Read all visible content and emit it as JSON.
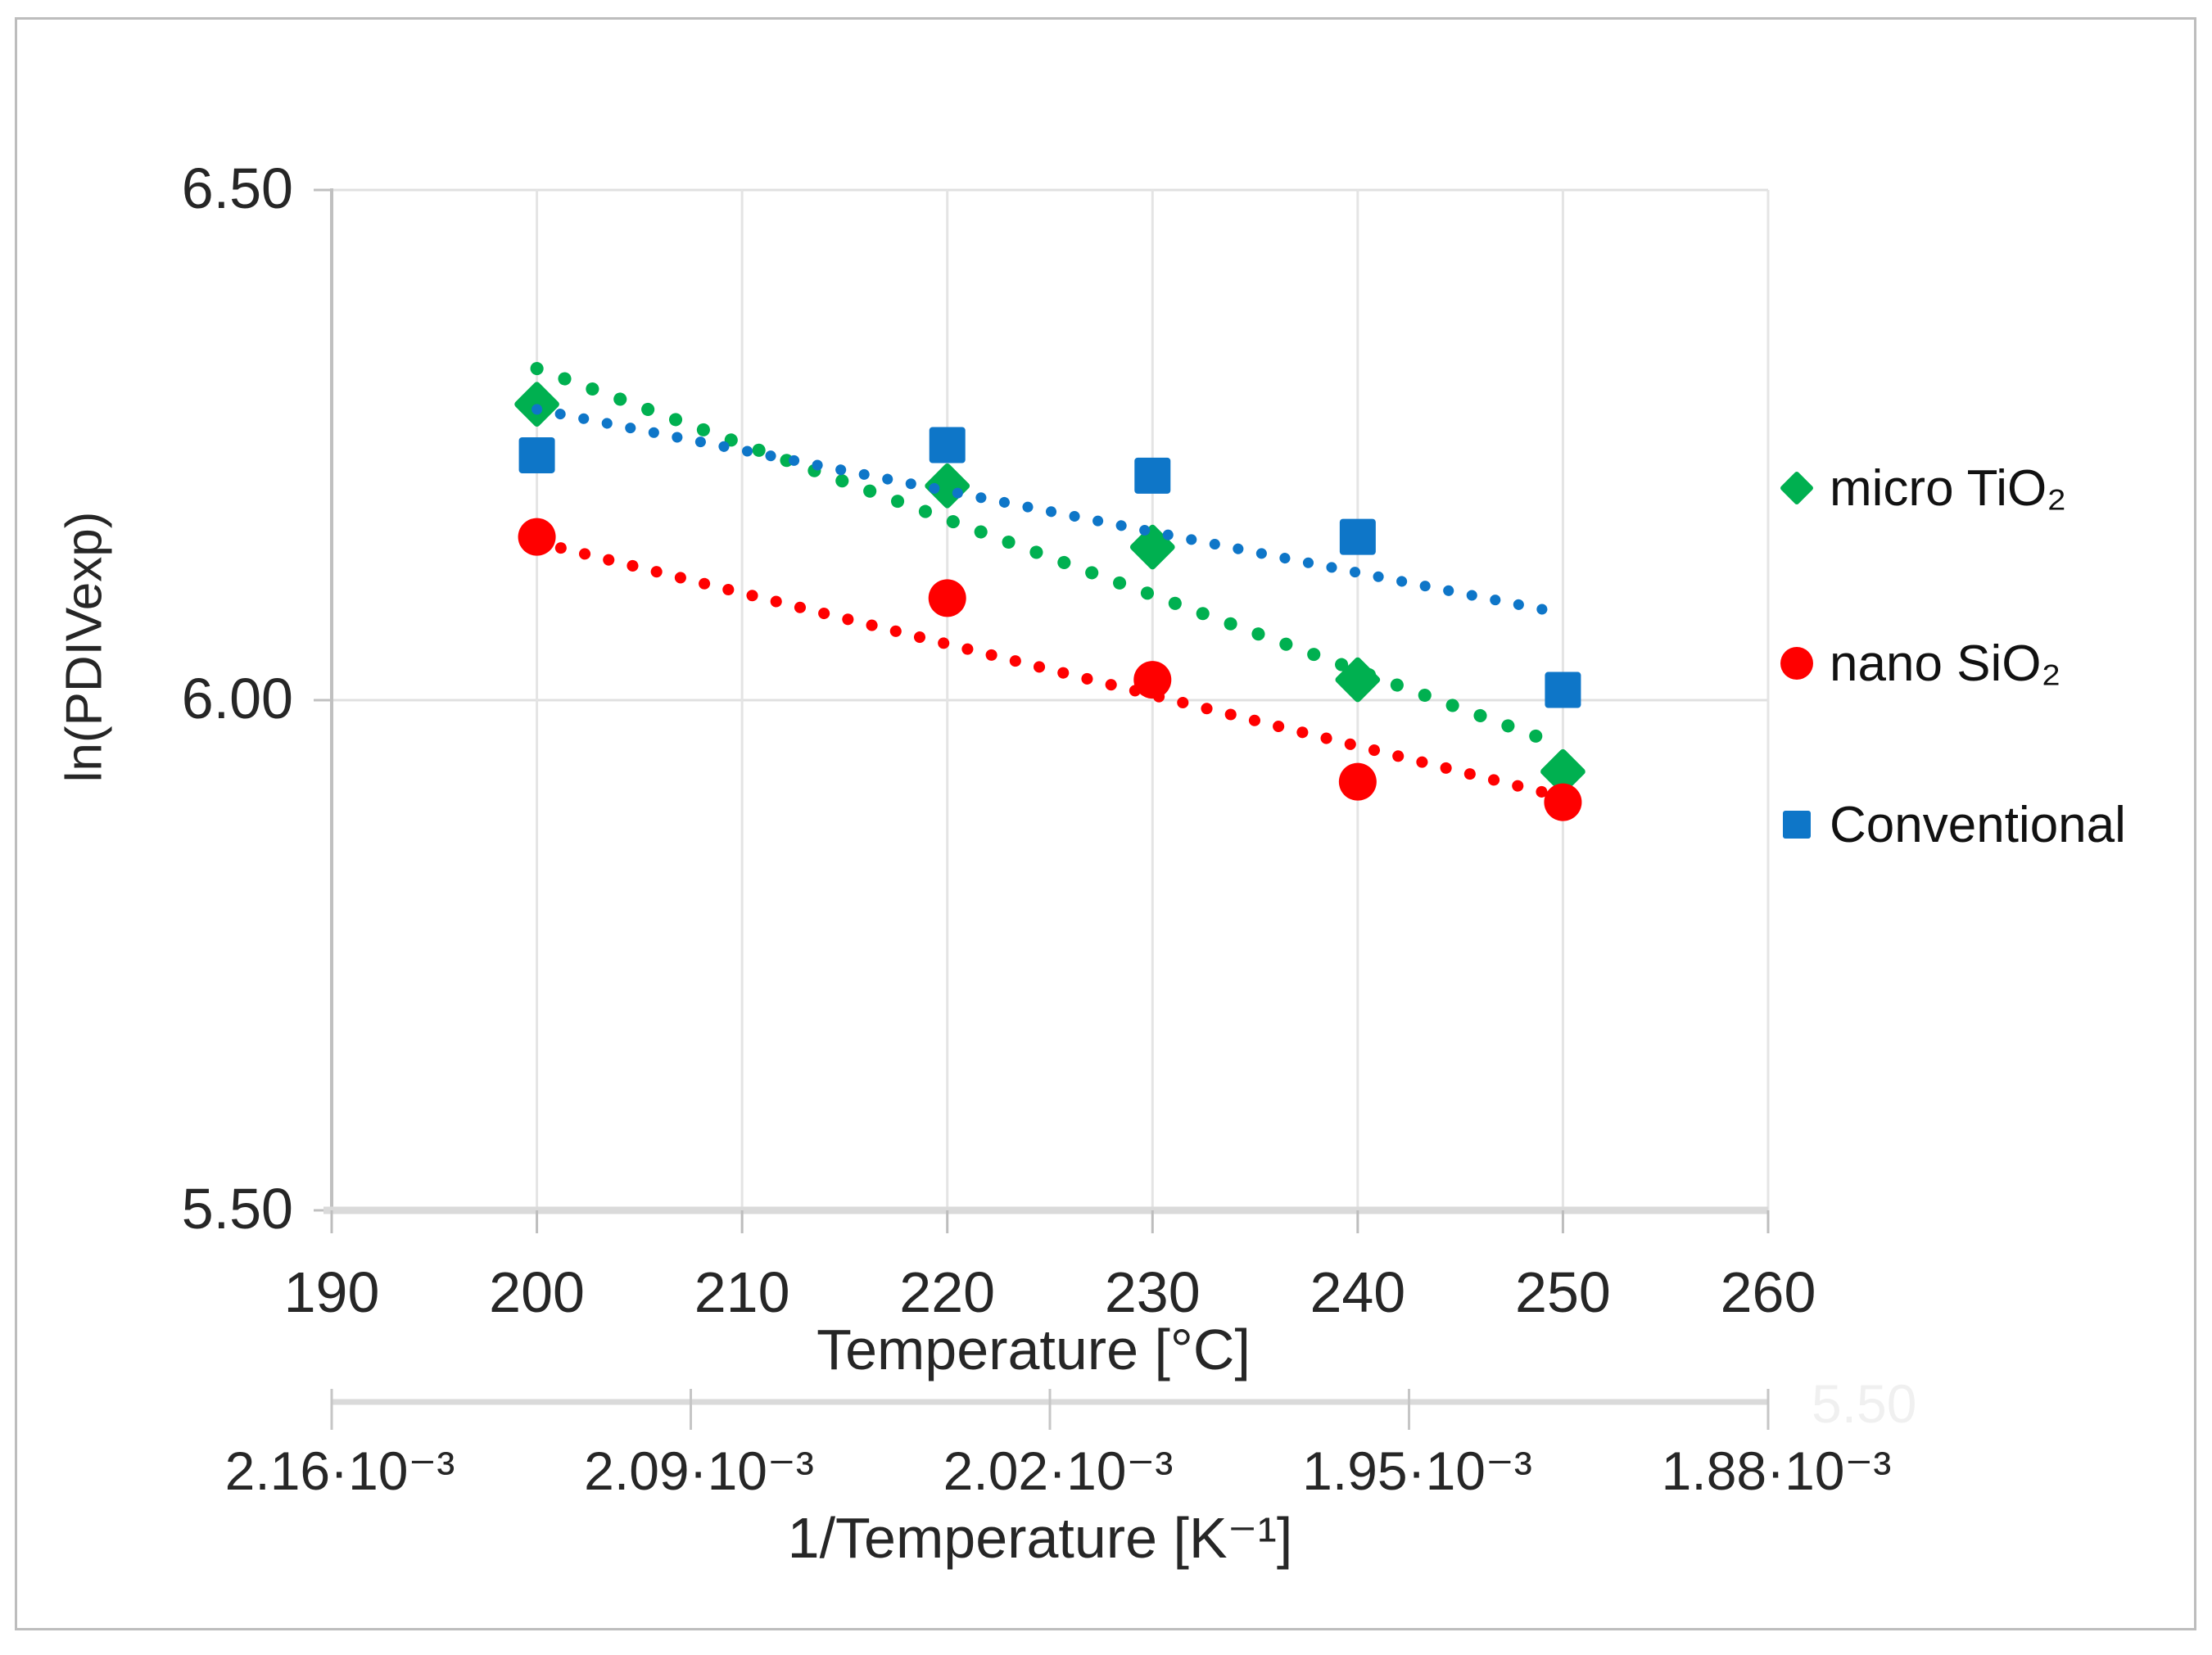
{
  "figure": {
    "background": "#FFFFFF",
    "border_color": "#BDBDBD"
  },
  "chart_data": {
    "type": "scatter",
    "title": "",
    "grid": true,
    "legend_position": "right",
    "y_axis": {
      "label": "ln(PDIVexp)",
      "min": 5.5,
      "max": 6.5,
      "ticks": [
        {
          "value": 6.5,
          "label": "6.50"
        },
        {
          "value": 6.0,
          "label": "6.00"
        },
        {
          "value": 5.5,
          "label": "5.50"
        }
      ]
    },
    "x_axis": {
      "label": "Temperature [°C]",
      "min": 190,
      "max": 260,
      "ticks": [
        {
          "value": 190,
          "label": "190"
        },
        {
          "value": 200,
          "label": "200"
        },
        {
          "value": 210,
          "label": "210"
        },
        {
          "value": 220,
          "label": "220"
        },
        {
          "value": 230,
          "label": "230"
        },
        {
          "value": 240,
          "label": "240"
        },
        {
          "value": 250,
          "label": "250"
        },
        {
          "value": 260,
          "label": "260"
        }
      ]
    },
    "x2_axis": {
      "label": "1/Temperature [K⁻¹]",
      "ticks": [
        "2.16·10⁻³",
        "2.09·10⁻³",
        "2.02·10⁻³",
        "1.95·10⁻³",
        "1.88·10⁻³"
      ]
    },
    "series": [
      {
        "name": "micro TiO₂",
        "marker": "diamond",
        "color": "#00B050",
        "points": [
          [
            200,
            6.29
          ],
          [
            220,
            6.21
          ],
          [
            230,
            6.15
          ],
          [
            240,
            6.02
          ],
          [
            250,
            5.93
          ]
        ],
        "trendline": {
          "style": "dotted",
          "x1": 200,
          "y1": 6.325,
          "x2": 250,
          "y2": 5.955
        }
      },
      {
        "name": "nano SiO₂",
        "marker": "circle",
        "color": "#FF0000",
        "points": [
          [
            200,
            6.16
          ],
          [
            220,
            6.1
          ],
          [
            230,
            6.02
          ],
          [
            240,
            5.92
          ],
          [
            250,
            5.9
          ]
        ],
        "trendline": {
          "style": "dotted",
          "x1": 200,
          "y1": 6.155,
          "x2": 250,
          "y2": 5.905
        }
      },
      {
        "name": "Conventional",
        "marker": "square",
        "color": "#0E76C8",
        "points": [
          [
            200,
            6.24
          ],
          [
            220,
            6.25
          ],
          [
            230,
            6.22
          ],
          [
            240,
            6.16
          ],
          [
            250,
            6.01
          ]
        ],
        "trendline": {
          "style": "dotted",
          "x1": 200,
          "y1": 6.285,
          "x2": 250,
          "y2": 6.085
        }
      }
    ],
    "stray_label": "5.50"
  }
}
